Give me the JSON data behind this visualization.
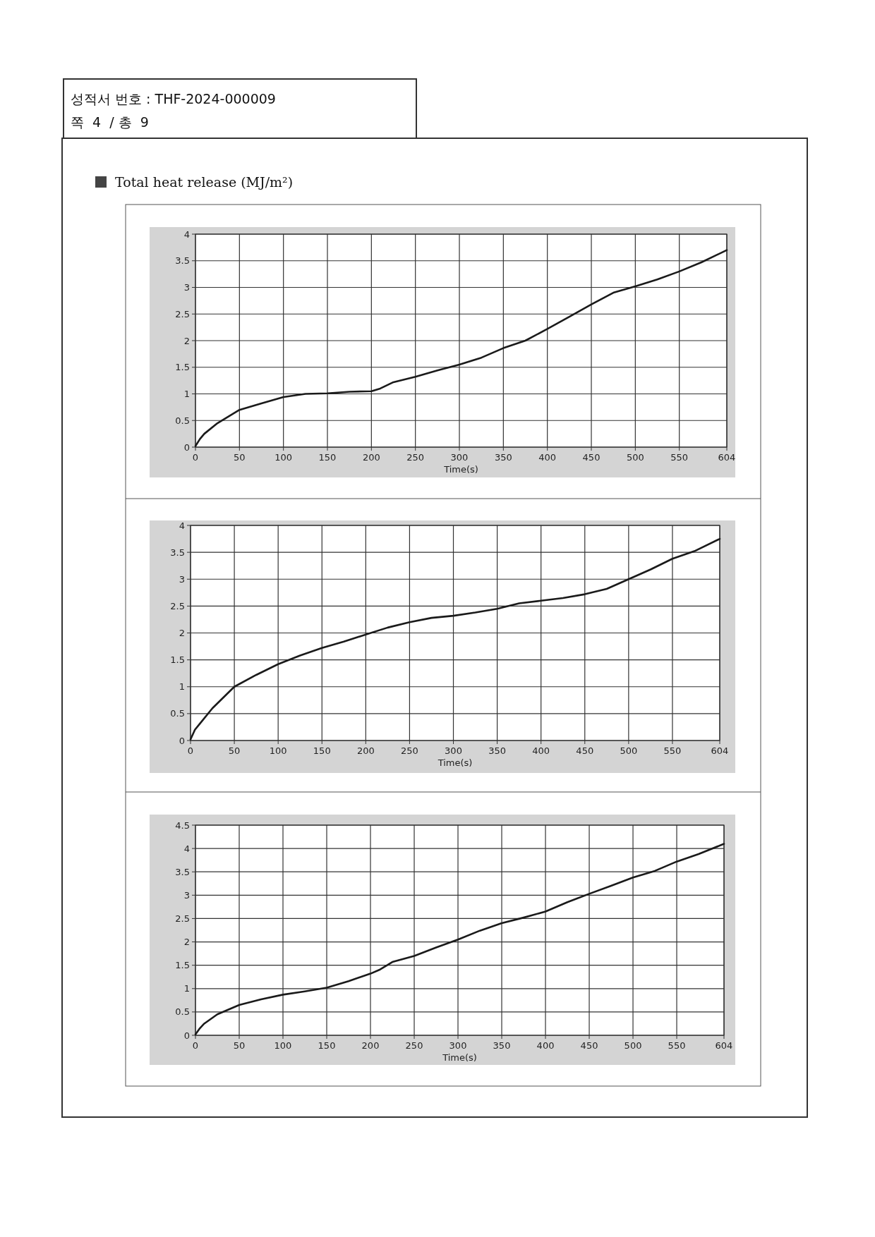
{
  "chart_data": [
    {
      "type": "line",
      "title": "Total heat release (MJ/m²)",
      "annotations": [
        "성적서 번호 : THF-2024-000009",
        "쪽  4  / 총  9"
      ],
      "xlabel": "Time(s)",
      "xlim": [
        0,
        604
      ],
      "xticks": [
        0,
        50,
        100,
        150,
        200,
        250,
        300,
        350,
        400,
        450,
        500,
        550,
        604
      ],
      "ylim": [
        0,
        4
      ],
      "yticks": [
        0,
        0.5,
        1,
        1.5,
        2,
        2.5,
        3,
        3.5,
        4
      ],
      "grid": true,
      "series": [
        {
          "color": "#1a1a1a",
          "x": [
            0,
            5,
            10,
            25,
            50,
            75,
            100,
            125,
            150,
            175,
            200,
            210,
            225,
            250,
            275,
            300,
            325,
            350,
            375,
            400,
            425,
            450,
            475,
            500,
            525,
            550,
            575,
            604
          ],
          "values": [
            0.02,
            0.15,
            0.25,
            0.45,
            0.7,
            0.82,
            0.94,
            1.0,
            1.01,
            1.04,
            1.05,
            1.1,
            1.22,
            1.32,
            1.44,
            1.55,
            1.68,
            1.86,
            2.0,
            2.22,
            2.45,
            2.68,
            2.9,
            3.02,
            3.15,
            3.3,
            3.47,
            3.7
          ]
        }
      ]
    },
    {
      "type": "line",
      "xlabel": "Time(s)",
      "xlim": [
        0,
        604
      ],
      "xticks": [
        0,
        50,
        100,
        150,
        200,
        250,
        300,
        350,
        400,
        450,
        500,
        550,
        604
      ],
      "ylim": [
        0,
        4
      ],
      "yticks": [
        0,
        0.5,
        1,
        1.5,
        2,
        2.5,
        3,
        3.5,
        4
      ],
      "grid": true,
      "series": [
        {
          "color": "#1a1a1a",
          "x": [
            0,
            5,
            10,
            25,
            50,
            75,
            100,
            125,
            150,
            175,
            200,
            225,
            250,
            275,
            300,
            325,
            350,
            375,
            400,
            425,
            450,
            475,
            500,
            525,
            550,
            575,
            604
          ],
          "values": [
            0.02,
            0.2,
            0.3,
            0.6,
            1.0,
            1.22,
            1.42,
            1.58,
            1.72,
            1.84,
            1.97,
            2.1,
            2.2,
            2.28,
            2.32,
            2.38,
            2.45,
            2.55,
            2.6,
            2.65,
            2.72,
            2.82,
            3.0,
            3.18,
            3.38,
            3.52,
            3.75
          ]
        }
      ]
    },
    {
      "type": "line",
      "xlabel": "Time(s)",
      "xlim": [
        0,
        604
      ],
      "xticks": [
        0,
        50,
        100,
        150,
        200,
        250,
        300,
        350,
        400,
        450,
        500,
        550,
        604
      ],
      "ylim": [
        0,
        4.5
      ],
      "yticks": [
        0,
        0.5,
        1,
        1.5,
        2,
        2.5,
        3,
        3.5,
        4,
        4.5
      ],
      "grid": true,
      "series": [
        {
          "color": "#1a1a1a",
          "x": [
            0,
            5,
            10,
            25,
            50,
            75,
            100,
            125,
            150,
            175,
            200,
            210,
            225,
            250,
            275,
            300,
            325,
            350,
            375,
            400,
            425,
            450,
            475,
            500,
            525,
            550,
            575,
            604
          ],
          "values": [
            0.02,
            0.15,
            0.25,
            0.45,
            0.65,
            0.77,
            0.87,
            0.94,
            1.02,
            1.16,
            1.32,
            1.4,
            1.57,
            1.7,
            1.88,
            2.05,
            2.24,
            2.4,
            2.52,
            2.65,
            2.85,
            3.03,
            3.2,
            3.38,
            3.52,
            3.72,
            3.88,
            4.1
          ]
        }
      ]
    }
  ]
}
